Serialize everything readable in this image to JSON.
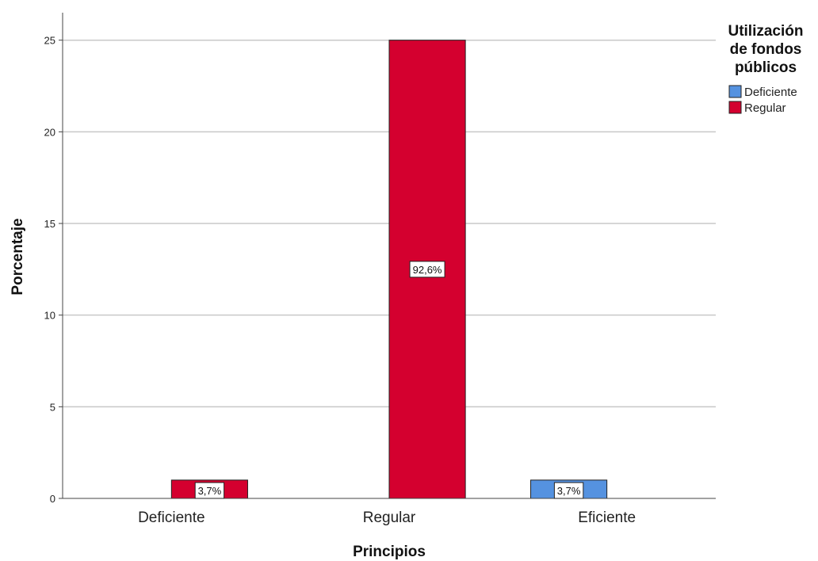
{
  "chart_data": {
    "type": "bar",
    "xlabel": "Principios",
    "ylabel": "Porcentaje",
    "categories": [
      "Deficiente",
      "Regular",
      "Eficiente"
    ],
    "ylim": [
      0,
      26.5
    ],
    "yticks": [
      0,
      5,
      10,
      15,
      20,
      25
    ],
    "grid": "horizontal",
    "legend": {
      "title_lines": [
        "Utilización",
        "de fondos",
        "públicos"
      ],
      "placement": "right"
    },
    "series": [
      {
        "name": "Deficiente",
        "color": "#5592e0",
        "values": [
          0,
          0,
          1
        ],
        "labels": [
          "",
          "",
          "3,7%"
        ]
      },
      {
        "name": "Regular",
        "color": "#d4002f",
        "values": [
          1,
          25,
          0
        ],
        "labels": [
          "3,7%",
          "92,6%",
          ""
        ]
      }
    ]
  }
}
